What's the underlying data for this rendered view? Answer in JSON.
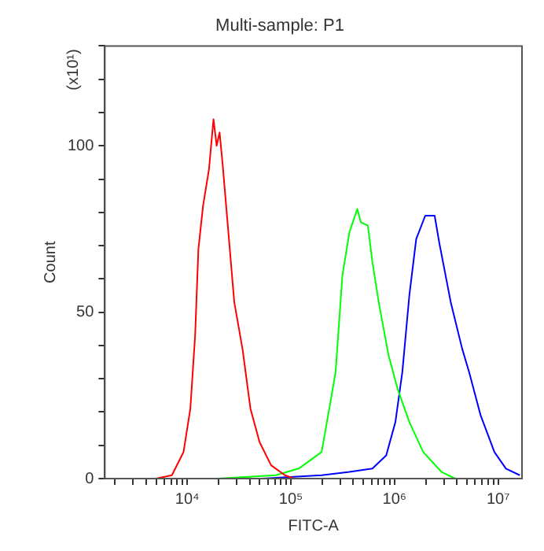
{
  "chart_data": {
    "type": "line",
    "title": "Multi-sample: P1",
    "xlabel": "FITC-A",
    "ylabel": "Count",
    "annotations": [
      "(x10¹)"
    ],
    "log": "x",
    "grid": false,
    "legend": false,
    "marker": "none",
    "line_style": "solid",
    "xlim": [
      1600,
      17000000
    ],
    "xticks": [
      {
        "value": 2000,
        "label": null
      },
      {
        "value": 3000,
        "label": null
      },
      {
        "value": 4000,
        "label": null
      },
      {
        "value": 5000,
        "label": null
      },
      {
        "value": 6000,
        "label": null
      },
      {
        "value": 7000,
        "label": null
      },
      {
        "value": 8000,
        "label": null
      },
      {
        "value": 9000,
        "label": null
      },
      {
        "value": 10000,
        "label": "10⁴"
      },
      {
        "value": 20000,
        "label": null
      },
      {
        "value": 30000,
        "label": null
      },
      {
        "value": 40000,
        "label": null
      },
      {
        "value": 50000,
        "label": null
      },
      {
        "value": 60000,
        "label": null
      },
      {
        "value": 70000,
        "label": null
      },
      {
        "value": 80000,
        "label": null
      },
      {
        "value": 90000,
        "label": null
      },
      {
        "value": 100000,
        "label": "10⁵"
      },
      {
        "value": 200000,
        "label": null
      },
      {
        "value": 300000,
        "label": null
      },
      {
        "value": 400000,
        "label": null
      },
      {
        "value": 500000,
        "label": null
      },
      {
        "value": 600000,
        "label": null
      },
      {
        "value": 700000,
        "label": null
      },
      {
        "value": 800000,
        "label": null
      },
      {
        "value": 900000,
        "label": null
      },
      {
        "value": 1000000,
        "label": "10⁶"
      },
      {
        "value": 2000000,
        "label": null
      },
      {
        "value": 3000000,
        "label": null
      },
      {
        "value": 4000000,
        "label": null
      },
      {
        "value": 5000000,
        "label": null
      },
      {
        "value": 6000000,
        "label": null
      },
      {
        "value": 7000000,
        "label": null
      },
      {
        "value": 8000000,
        "label": null
      },
      {
        "value": 9000000,
        "label": null
      },
      {
        "value": 10000000,
        "label": "10⁷"
      }
    ],
    "ylim": [
      0,
      130
    ],
    "yticks": [
      0,
      {
        "value": 10,
        "label": null
      },
      {
        "value": 20,
        "label": null
      },
      {
        "value": 30,
        "label": null
      },
      {
        "value": 40,
        "label": null
      },
      50,
      {
        "value": 60,
        "label": null
      },
      {
        "value": 70,
        "label": null
      },
      {
        "value": 80,
        "label": null
      },
      {
        "value": 90,
        "label": null
      },
      100,
      {
        "value": 110,
        "label": null
      },
      {
        "value": 120,
        "label": null
      },
      {
        "value": 130,
        "label": null
      }
    ],
    "series": [
      {
        "color": "#ff0000",
        "x": [
          5000,
          7100,
          9200,
          10700,
          11900,
          12800,
          14200,
          16200,
          17900,
          19200,
          20500,
          22000,
          25700,
          28400,
          34100,
          40700,
          49800,
          64400,
          87700,
          107000
        ],
        "values": [
          0,
          1,
          8,
          21,
          43,
          69,
          82,
          93,
          108,
          100,
          104,
          94,
          69,
          53,
          39,
          21,
          11,
          4,
          1,
          0
        ]
      },
      {
        "color": "#00ff00",
        "x": [
          19600,
          71300,
          119000,
          198000,
          244000,
          270000,
          314000,
          367000,
          437000,
          474000,
          553000,
          612000,
          713000,
          877000,
          1070000,
          1390000,
          1890000,
          2840000,
          3860000
        ],
        "values": [
          0,
          1,
          3,
          8,
          24,
          32,
          61,
          74,
          81,
          77,
          76,
          65,
          52,
          37,
          27,
          17,
          8,
          2,
          0
        ]
      },
      {
        "color": "#0000ff",
        "x": [
          52500,
          198000,
          367000,
          612000,
          832000,
          1020000,
          1190000,
          1390000,
          1620000,
          1980000,
          2440000,
          2700000,
          3490000,
          4500000,
          5250000,
          6780000,
          9200000,
          11900000,
          16200000
        ],
        "values": [
          0,
          1,
          2,
          3,
          7,
          17,
          32,
          55,
          72,
          79,
          79,
          71,
          53,
          39,
          32,
          19,
          8,
          3,
          1
        ]
      }
    ]
  }
}
